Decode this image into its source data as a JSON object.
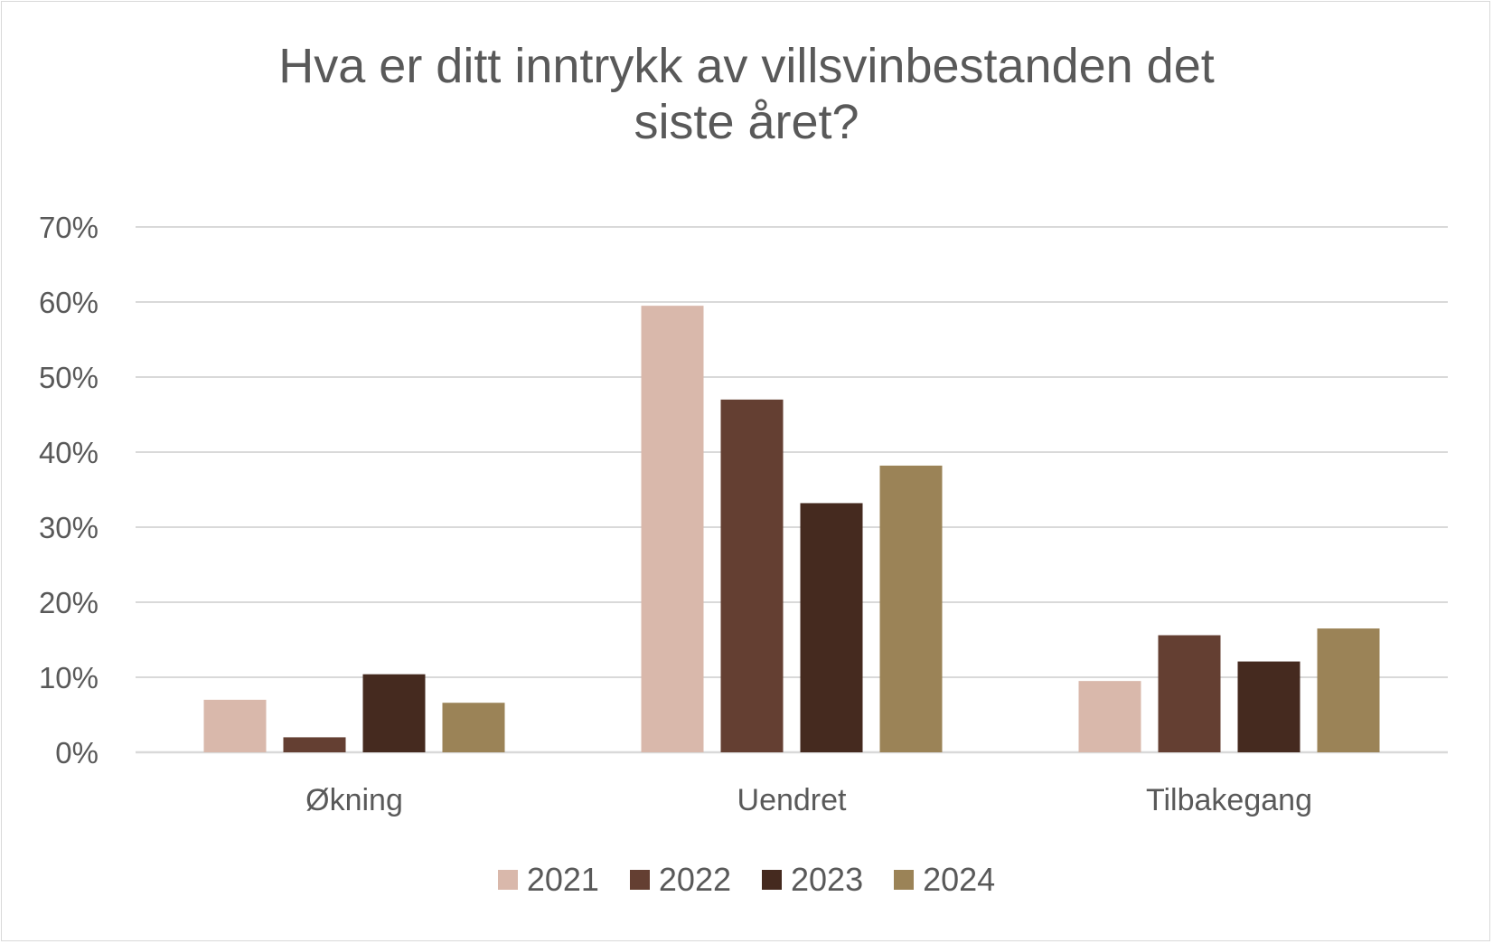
{
  "chart_data": {
    "type": "bar",
    "title": "Hva er ditt inntrykk av villsvinbestanden det siste året?",
    "title_lines": [
      "Hva er ditt inntrykk av villsvinbestanden det",
      "siste året?"
    ],
    "categories": [
      "Økning",
      "Uendret",
      "Tilbakegang"
    ],
    "series": [
      {
        "name": "2021",
        "color": "#d9b8ab",
        "values": [
          7.0,
          59.5,
          9.5
        ]
      },
      {
        "name": "2022",
        "color": "#643f32",
        "values": [
          2.0,
          47.0,
          15.6
        ]
      },
      {
        "name": "2023",
        "color": "#452a1f",
        "values": [
          10.4,
          33.2,
          12.1
        ]
      },
      {
        "name": "2024",
        "color": "#9b8357",
        "values": [
          6.6,
          38.2,
          16.5
        ]
      }
    ],
    "y_ticks": [
      "0%",
      "10%",
      "20%",
      "30%",
      "40%",
      "50%",
      "60%",
      "70%"
    ],
    "ylim": [
      0,
      70
    ],
    "grid": true,
    "legend_position": "bottom",
    "xlabel": "",
    "ylabel": ""
  }
}
